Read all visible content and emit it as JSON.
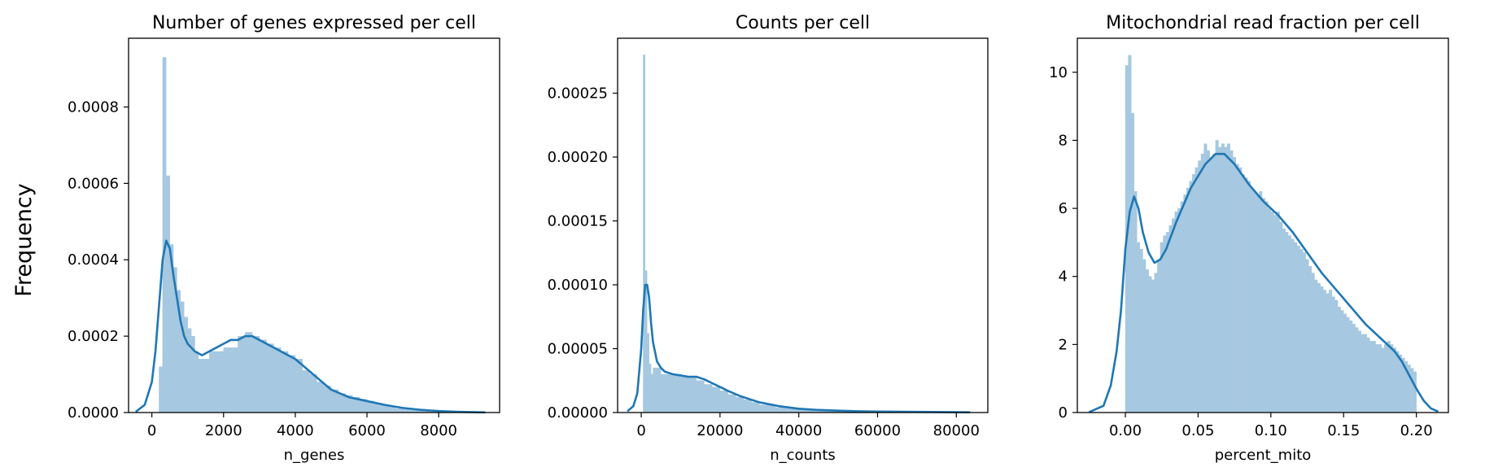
{
  "figure": {
    "ylabel": "Frequency"
  },
  "chart_data": [
    {
      "type": "histogram",
      "title": "Number of genes expressed per cell",
      "xlabel": "n_genes",
      "ylabel": "",
      "xlim": [
        -650,
        9700
      ],
      "ylim": [
        0,
        0.00098
      ],
      "xticks": [
        0,
        2000,
        4000,
        6000,
        8000
      ],
      "xtick_labels": [
        "0",
        "2000",
        "4000",
        "6000",
        "8000"
      ],
      "yticks": [
        0,
        0.0002,
        0.0004,
        0.0006,
        0.0008
      ],
      "ytick_labels": [
        "0.0000",
        "0.0002",
        "0.0004",
        "0.0006",
        "0.0008"
      ],
      "bar_color": "#a6c8e0",
      "kde_color": "#1f77b4",
      "hist": {
        "x": [
          200,
          300,
          400,
          500,
          600,
          700,
          800,
          900,
          1000,
          1100,
          1200,
          1300,
          1400,
          1600,
          1800,
          2000,
          2200,
          2400,
          2600,
          2800,
          3000,
          3200,
          3400,
          3600,
          3800,
          4000,
          4200,
          4400,
          4600,
          4800,
          5000,
          5200,
          5400,
          5600,
          5800,
          6000,
          6200,
          6400,
          6600,
          6800,
          7000,
          7200,
          7400,
          7600,
          7800,
          8000,
          8200,
          8400,
          8600,
          8800,
          9000,
          9200
        ],
        "y": [
          0.00012,
          0.00093,
          0.00062,
          0.00044,
          0.00038,
          0.00032,
          0.00029,
          0.00025,
          0.00022,
          0.0002,
          0.00016,
          0.00014,
          0.00014,
          0.00016,
          0.00016,
          0.00017,
          0.00017,
          0.0002,
          0.00021,
          0.0002,
          0.00019,
          0.00018,
          0.00017,
          0.00016,
          0.00015,
          0.00014,
          0.00011,
          0.0001,
          8e-05,
          7e-05,
          6e-05,
          5e-05,
          4.5e-05,
          4e-05,
          3.5e-05,
          3e-05,
          2.5e-05,
          2e-05,
          1.5e-05,
          1e-05,
          8e-06,
          6e-06,
          5e-06,
          4e-06,
          3e-06,
          2e-06,
          2e-06,
          1e-06,
          1e-06,
          1e-06,
          1e-06,
          5e-07
        ]
      },
      "kde": {
        "x": [
          -450,
          -200,
          0,
          100,
          200,
          300,
          400,
          500,
          600,
          700,
          800,
          900,
          1000,
          1200,
          1400,
          1600,
          1800,
          2000,
          2200,
          2400,
          2600,
          2800,
          3000,
          3200,
          3400,
          3600,
          3800,
          4000,
          4500,
          5000,
          5500,
          6000,
          6500,
          7000,
          7500,
          8000,
          8500,
          9000,
          9300
        ],
        "y": [
          2e-06,
          2e-05,
          8e-05,
          0.00016,
          0.00028,
          0.0004,
          0.00045,
          0.00043,
          0.00036,
          0.0003,
          0.00024,
          0.0002,
          0.00018,
          0.00016,
          0.00015,
          0.00016,
          0.00017,
          0.00018,
          0.00019,
          0.00019,
          0.0002,
          0.0002,
          0.00019,
          0.00018,
          0.00017,
          0.00016,
          0.00015,
          0.00014,
          0.0001,
          6e-05,
          4e-05,
          3e-05,
          2e-05,
          1.2e-05,
          7e-06,
          4e-06,
          2e-06,
          1e-06,
          5e-07
        ]
      }
    },
    {
      "type": "histogram",
      "title": "Counts per cell",
      "xlabel": "n_counts",
      "ylabel": "",
      "xlim": [
        -6000,
        88000
      ],
      "ylim": [
        0,
        0.000293
      ],
      "xticks": [
        0,
        20000,
        40000,
        60000,
        80000
      ],
      "xtick_labels": [
        "0",
        "20000",
        "40000",
        "60000",
        "80000"
      ],
      "yticks": [
        0,
        5e-05,
        0.0001,
        0.00015,
        0.0002,
        0.00025
      ],
      "ytick_labels": [
        "0.00000",
        "0.00005",
        "0.00010",
        "0.00015",
        "0.00020",
        "0.00025"
      ],
      "bar_color": "#a6c8e0",
      "kde_color": "#1f77b4",
      "hist": {
        "x": [
          500,
          1000,
          1500,
          2000,
          2500,
          3000,
          4000,
          5000,
          6000,
          8000,
          10000,
          12000,
          14000,
          16000,
          18000,
          20000,
          22000,
          24000,
          26000,
          28000,
          30000,
          34000,
          38000,
          42000,
          46000,
          50000,
          55000,
          60000,
          65000,
          70000,
          75000,
          80000
        ],
        "y": [
          0.00028,
          0.000111,
          6.2e-05,
          3.8e-05,
          3e-05,
          3.5e-05,
          3.5e-05,
          3e-05,
          3e-05,
          3e-05,
          2.8e-05,
          2.7e-05,
          2.5e-05,
          2.2e-05,
          2e-05,
          1.7e-05,
          1.4e-05,
          1.2e-05,
          1e-05,
          8e-06,
          6e-06,
          4e-06,
          3e-06,
          2e-06,
          1.5e-06,
          1e-06,
          8e-07,
          6e-07,
          5e-07,
          4e-07,
          3e-07,
          2e-07
        ]
      },
      "kde": {
        "x": [
          -3500,
          -2000,
          -1000,
          0,
          500,
          1000,
          1500,
          2000,
          2500,
          3000,
          4000,
          5000,
          6000,
          8000,
          10000,
          12000,
          14000,
          16000,
          18000,
          20000,
          22000,
          25000,
          30000,
          35000,
          40000,
          45000,
          50000,
          55000,
          60000,
          70000,
          80000,
          83500
        ],
        "y": [
          1e-06,
          5e-06,
          1.5e-05,
          5e-05,
          8e-05,
          0.0001,
          0.0001,
          9e-05,
          7e-05,
          5.5e-05,
          4e-05,
          3.5e-05,
          3.2e-05,
          3e-05,
          2.9e-05,
          2.8e-05,
          2.8e-05,
          2.6e-05,
          2.3e-05,
          2e-05,
          1.7e-05,
          1.3e-05,
          8e-06,
          5e-06,
          3e-06,
          2e-06,
          1.5e-06,
          1e-06,
          8e-07,
          5e-07,
          3e-07,
          2e-07
        ]
      }
    },
    {
      "type": "histogram",
      "title": "Mitochondrial read fraction per cell",
      "xlabel": "percent_mito",
      "ylabel": "",
      "xlim": [
        -0.033,
        0.222
      ],
      "ylim": [
        0,
        11
      ],
      "xticks": [
        0.0,
        0.05,
        0.1,
        0.15,
        0.2
      ],
      "xtick_labels": [
        "0.00",
        "0.05",
        "0.10",
        "0.15",
        "0.20"
      ],
      "yticks": [
        0,
        2,
        4,
        6,
        8,
        10
      ],
      "ytick_labels": [
        "0",
        "2",
        "4",
        "6",
        "8",
        "10"
      ],
      "bar_color": "#a6c8e0",
      "kde_color": "#1f77b4",
      "hist": {
        "x": [
          0.0,
          0.002,
          0.004,
          0.006,
          0.008,
          0.01,
          0.012,
          0.014,
          0.016,
          0.018,
          0.02,
          0.022,
          0.024,
          0.026,
          0.028,
          0.03,
          0.032,
          0.034,
          0.036,
          0.038,
          0.04,
          0.042,
          0.044,
          0.046,
          0.048,
          0.05,
          0.052,
          0.054,
          0.056,
          0.058,
          0.06,
          0.062,
          0.064,
          0.066,
          0.068,
          0.07,
          0.072,
          0.074,
          0.076,
          0.078,
          0.08,
          0.082,
          0.084,
          0.086,
          0.088,
          0.09,
          0.092,
          0.094,
          0.096,
          0.098,
          0.1,
          0.102,
          0.104,
          0.106,
          0.108,
          0.11,
          0.112,
          0.114,
          0.116,
          0.118,
          0.12,
          0.122,
          0.124,
          0.126,
          0.128,
          0.13,
          0.132,
          0.134,
          0.136,
          0.138,
          0.14,
          0.142,
          0.144,
          0.146,
          0.148,
          0.15,
          0.152,
          0.154,
          0.156,
          0.158,
          0.16,
          0.162,
          0.164,
          0.166,
          0.168,
          0.17,
          0.172,
          0.174,
          0.176,
          0.178,
          0.18,
          0.182,
          0.184,
          0.186,
          0.188,
          0.19,
          0.192,
          0.194,
          0.196,
          0.198
        ],
        "y": [
          10.2,
          10.5,
          8.8,
          6.5,
          5.0,
          4.8,
          4.5,
          4.2,
          4.0,
          3.9,
          4.1,
          4.5,
          5.0,
          5.2,
          5.3,
          5.5,
          5.7,
          5.9,
          6.0,
          6.2,
          6.4,
          6.6,
          6.8,
          7.0,
          7.2,
          7.4,
          7.6,
          7.9,
          7.7,
          7.5,
          7.6,
          8.0,
          7.8,
          7.9,
          7.8,
          7.9,
          7.7,
          7.5,
          7.3,
          7.2,
          7.0,
          6.9,
          6.8,
          6.6,
          6.5,
          6.4,
          6.5,
          6.3,
          6.2,
          6.0,
          5.9,
          5.8,
          5.9,
          5.6,
          5.4,
          5.3,
          5.2,
          5.1,
          5.0,
          4.9,
          4.8,
          4.7,
          4.5,
          4.3,
          4.1,
          3.9,
          3.8,
          3.7,
          3.6,
          3.5,
          3.6,
          3.4,
          3.3,
          3.1,
          3.0,
          2.9,
          2.8,
          2.7,
          2.6,
          2.5,
          2.4,
          2.3,
          2.3,
          2.2,
          2.1,
          2.1,
          2.0,
          2.0,
          1.9,
          2.0,
          2.1,
          2.0,
          1.9,
          1.8,
          1.7,
          1.6,
          1.5,
          1.4,
          1.3,
          1.2
        ]
      },
      "kde": {
        "x": [
          -0.025,
          -0.015,
          -0.01,
          -0.006,
          -0.003,
          0.0,
          0.003,
          0.006,
          0.009,
          0.012,
          0.016,
          0.02,
          0.024,
          0.028,
          0.035,
          0.045,
          0.055,
          0.062,
          0.068,
          0.075,
          0.085,
          0.095,
          0.105,
          0.115,
          0.125,
          0.135,
          0.145,
          0.155,
          0.165,
          0.175,
          0.18,
          0.185,
          0.19,
          0.195,
          0.2,
          0.205,
          0.21,
          0.215
        ],
        "y": [
          0.01,
          0.2,
          0.8,
          1.8,
          3.0,
          4.8,
          5.9,
          6.35,
          6.0,
          5.3,
          4.7,
          4.4,
          4.5,
          4.8,
          5.6,
          6.6,
          7.3,
          7.6,
          7.6,
          7.3,
          6.7,
          6.2,
          5.8,
          5.3,
          4.7,
          4.1,
          3.6,
          3.1,
          2.6,
          2.2,
          2.0,
          1.8,
          1.5,
          1.1,
          0.7,
          0.35,
          0.12,
          0.03
        ]
      }
    }
  ]
}
